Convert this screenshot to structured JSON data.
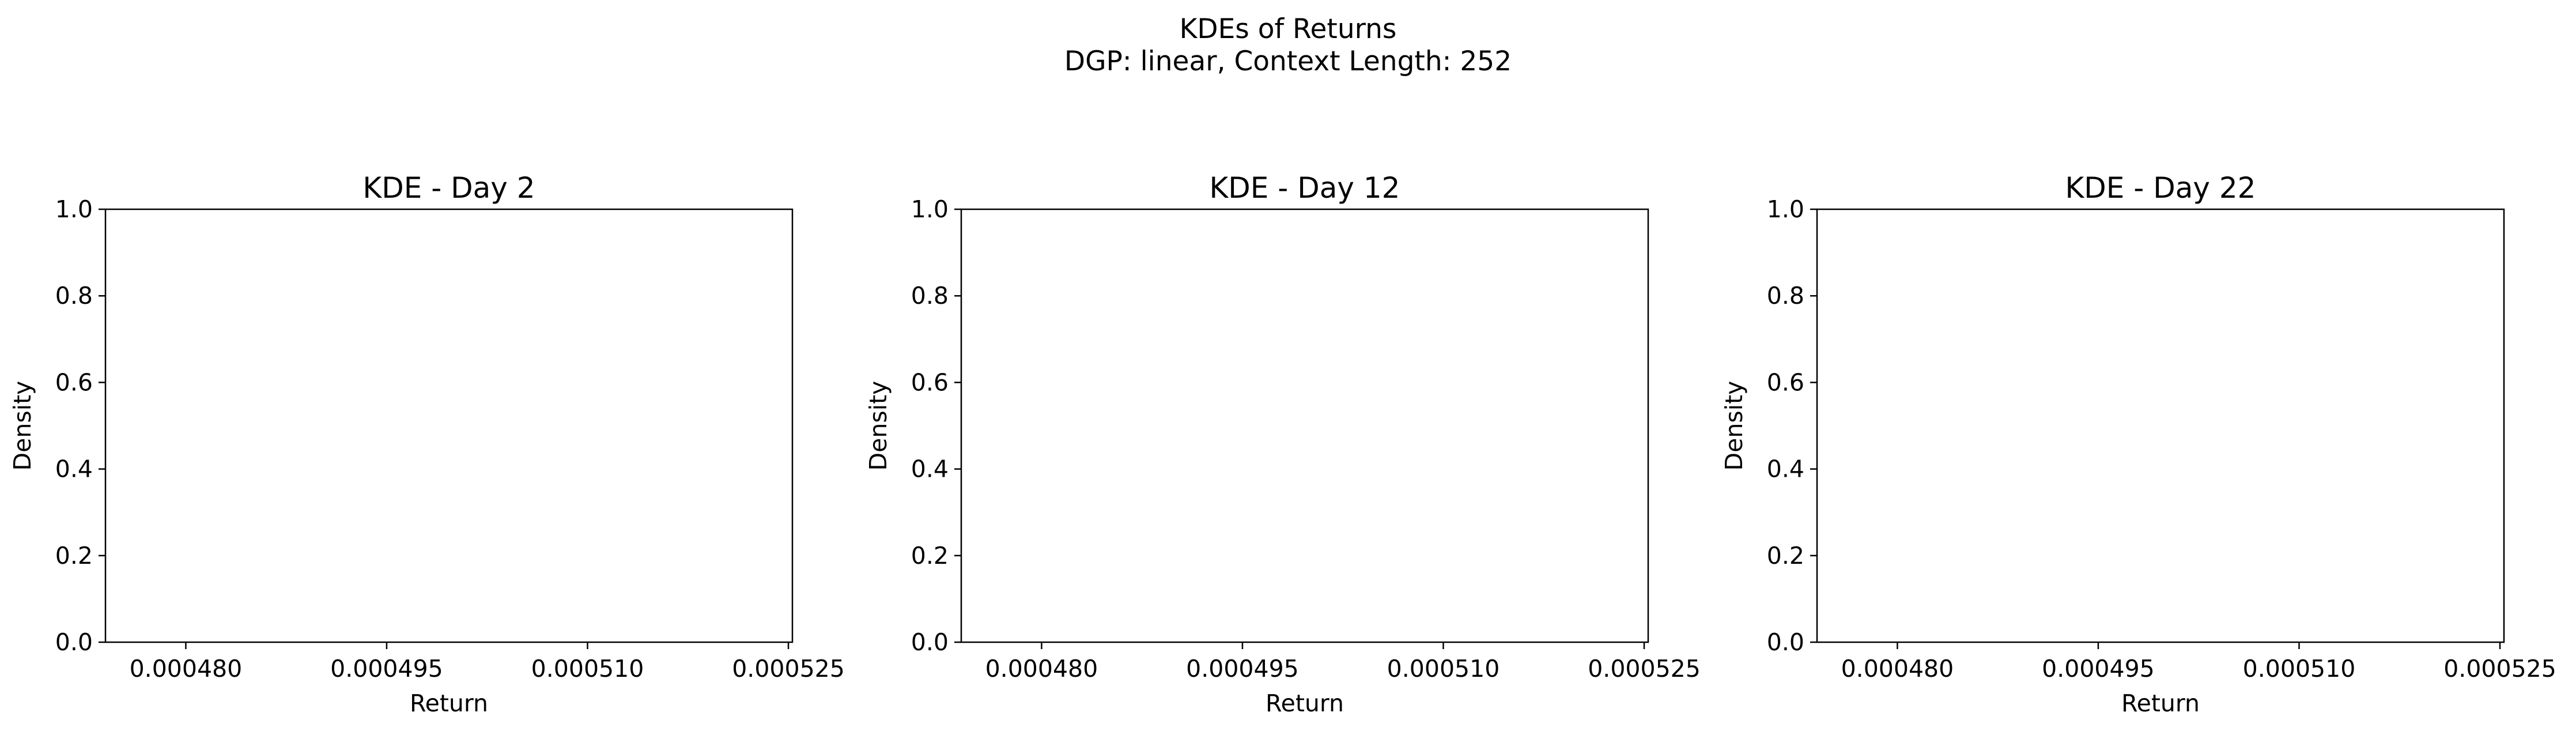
{
  "figure": {
    "suptitle_line1": "KDEs of Returns",
    "suptitle_line2": "DGP: linear, Context Length: 252"
  },
  "chart_data": [
    {
      "type": "line",
      "title": "KDE - Day 2",
      "xlabel": "Return",
      "ylabel": "Density",
      "xlim": [
        0.000474,
        0.0005253
      ],
      "ylim": [
        0.0,
        1.0
      ],
      "xticks": [
        0.00048,
        0.000495,
        0.00051,
        0.000525
      ],
      "xtick_labels": [
        "0.000480",
        "0.000495",
        "0.000510",
        "0.000525"
      ],
      "yticks": [
        0.0,
        0.2,
        0.4,
        0.6,
        0.8,
        1.0
      ],
      "ytick_labels": [
        "0.0",
        "0.2",
        "0.4",
        "0.6",
        "0.8",
        "1.0"
      ],
      "grid": false,
      "series": []
    },
    {
      "type": "line",
      "title": "KDE - Day 12",
      "xlabel": "Return",
      "ylabel": "Density",
      "xlim": [
        0.000474,
        0.0005253
      ],
      "ylim": [
        0.0,
        1.0
      ],
      "xticks": [
        0.00048,
        0.000495,
        0.00051,
        0.000525
      ],
      "xtick_labels": [
        "0.000480",
        "0.000495",
        "0.000510",
        "0.000525"
      ],
      "yticks": [
        0.0,
        0.2,
        0.4,
        0.6,
        0.8,
        1.0
      ],
      "ytick_labels": [
        "0.0",
        "0.2",
        "0.4",
        "0.6",
        "0.8",
        "1.0"
      ],
      "grid": false,
      "series": []
    },
    {
      "type": "line",
      "title": "KDE - Day 22",
      "xlabel": "Return",
      "ylabel": "Density",
      "xlim": [
        0.000474,
        0.0005253
      ],
      "ylim": [
        0.0,
        1.0
      ],
      "xticks": [
        0.00048,
        0.000495,
        0.00051,
        0.000525
      ],
      "xtick_labels": [
        "0.000480",
        "0.000495",
        "0.000510",
        "0.000525"
      ],
      "yticks": [
        0.0,
        0.2,
        0.4,
        0.6,
        0.8,
        1.0
      ],
      "ytick_labels": [
        "0.0",
        "0.2",
        "0.4",
        "0.6",
        "0.8",
        "1.0"
      ],
      "grid": false,
      "series": []
    }
  ]
}
